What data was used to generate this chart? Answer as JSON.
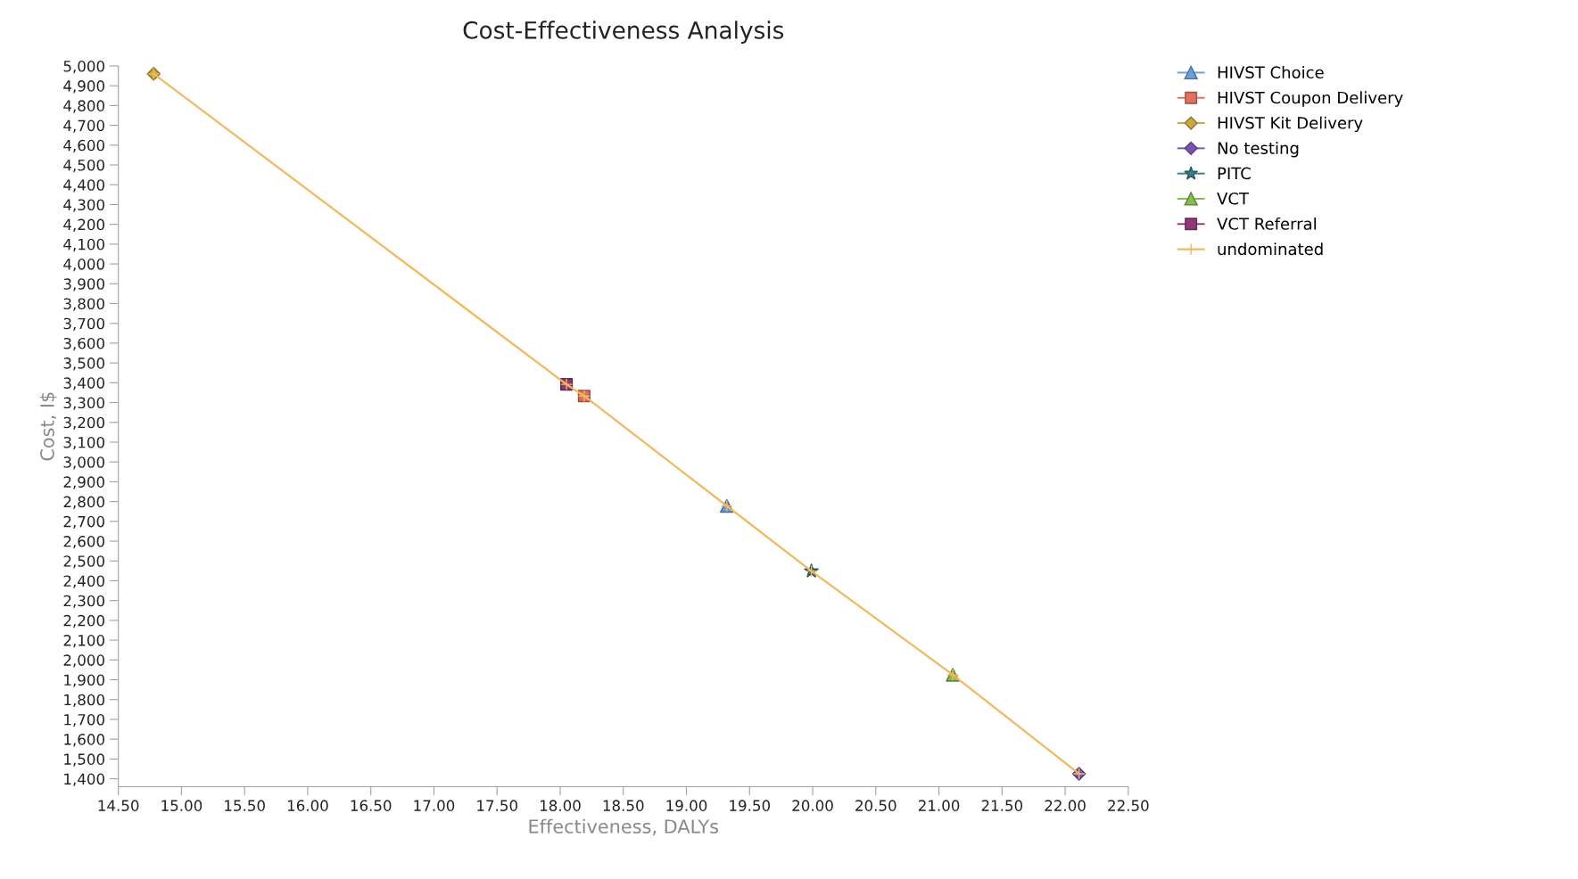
{
  "chart_data": {
    "type": "scatter",
    "title": "Cost-Effectiveness Analysis",
    "xlabel": "Effectiveness, DALYs",
    "ylabel": "Cost, I$",
    "series": [
      {
        "name": "HIVST Choice",
        "color": "#6a9fdc",
        "marker": "triangle",
        "x": [
          19.32
        ],
        "values": [
          2778
        ]
      },
      {
        "name": "HIVST Coupon Delivery",
        "color": "#e07060",
        "marker": "square",
        "x": [
          18.19
        ],
        "values": [
          3333
        ]
      },
      {
        "name": "HIVST Kit Delivery",
        "color": "#c8aa40",
        "marker": "diamond",
        "x": [
          14.78
        ],
        "values": [
          4960
        ]
      },
      {
        "name": "No testing",
        "color": "#7a55b0",
        "marker": "diamond",
        "x": [
          22.11
        ],
        "values": [
          1425
        ]
      },
      {
        "name": "PITC",
        "color": "#3a8088",
        "marker": "star",
        "x": [
          19.99
        ],
        "values": [
          2449
        ]
      },
      {
        "name": "VCT",
        "color": "#88bb50",
        "marker": "triangle",
        "x": [
          21.11
        ],
        "values": [
          1925
        ]
      },
      {
        "name": "VCT Referral",
        "color": "#8e3a78",
        "marker": "square",
        "x": [
          18.05
        ],
        "values": [
          3392
        ]
      },
      {
        "name": "undominated",
        "type": "line",
        "color": "#f0b860",
        "marker": "cross",
        "x": [
          14.78,
          18.05,
          18.19,
          19.32,
          19.99,
          21.11,
          22.11
        ],
        "values": [
          4960,
          3392,
          3333,
          2778,
          2449,
          1925,
          1425
        ]
      }
    ],
    "xlim": [
      14.5,
      22.5
    ],
    "xticks": [
      {
        "value": 14.5,
        "label": "14.50"
      },
      {
        "value": 15,
        "label": "15.00"
      },
      {
        "value": 15.5,
        "label": "15.50"
      },
      {
        "value": 16,
        "label": "16.00"
      },
      {
        "value": 16.5,
        "label": "16.50"
      },
      {
        "value": 17,
        "label": "17.00"
      },
      {
        "value": 17.5,
        "label": "17.50"
      },
      {
        "value": 18,
        "label": "18.00"
      },
      {
        "value": 18.5,
        "label": "18.50"
      },
      {
        "value": 19,
        "label": "19.00"
      },
      {
        "value": 19.5,
        "label": "19.50"
      },
      {
        "value": 20,
        "label": "20.00"
      },
      {
        "value": 20.5,
        "label": "20.50"
      },
      {
        "value": 21,
        "label": "21.00"
      },
      {
        "value": 21.5,
        "label": "21.50"
      },
      {
        "value": 22,
        "label": "22.00"
      },
      {
        "value": 22.5,
        "label": "22.50"
      }
    ],
    "ylim": [
      1360,
      5000
    ],
    "yticks": [
      {
        "value": 1400,
        "label": "1,400"
      },
      {
        "value": 1500,
        "label": "1,500"
      },
      {
        "value": 1600,
        "label": "1,600"
      },
      {
        "value": 1700,
        "label": "1,700"
      },
      {
        "value": 1800,
        "label": "1,800"
      },
      {
        "value": 1900,
        "label": "1,900"
      },
      {
        "value": 2000,
        "label": "2,000"
      },
      {
        "value": 2100,
        "label": "2,100"
      },
      {
        "value": 2200,
        "label": "2,200"
      },
      {
        "value": 2300,
        "label": "2,300"
      },
      {
        "value": 2400,
        "label": "2,400"
      },
      {
        "value": 2500,
        "label": "2,500"
      },
      {
        "value": 2600,
        "label": "2,600"
      },
      {
        "value": 2700,
        "label": "2,700"
      },
      {
        "value": 2800,
        "label": "2,800"
      },
      {
        "value": 2900,
        "label": "2,900"
      },
      {
        "value": 3000,
        "label": "3,000"
      },
      {
        "value": 3100,
        "label": "3,100"
      },
      {
        "value": 3200,
        "label": "3,200"
      },
      {
        "value": 3300,
        "label": "3,300"
      },
      {
        "value": 3400,
        "label": "3,400"
      },
      {
        "value": 3500,
        "label": "3,500"
      },
      {
        "value": 3600,
        "label": "3,600"
      },
      {
        "value": 3700,
        "label": "3,700"
      },
      {
        "value": 3800,
        "label": "3,800"
      },
      {
        "value": 3900,
        "label": "3,900"
      },
      {
        "value": 4000,
        "label": "4,000"
      },
      {
        "value": 4100,
        "label": "4,100"
      },
      {
        "value": 4200,
        "label": "4,200"
      },
      {
        "value": 4300,
        "label": "4,300"
      },
      {
        "value": 4400,
        "label": "4,400"
      },
      {
        "value": 4500,
        "label": "4,500"
      },
      {
        "value": 4600,
        "label": "4,600"
      },
      {
        "value": 4700,
        "label": "4,700"
      },
      {
        "value": 4800,
        "label": "4,800"
      },
      {
        "value": 4900,
        "label": "4,900"
      },
      {
        "value": 5000,
        "label": "5,000"
      }
    ],
    "grid": false,
    "legend": "top right"
  }
}
